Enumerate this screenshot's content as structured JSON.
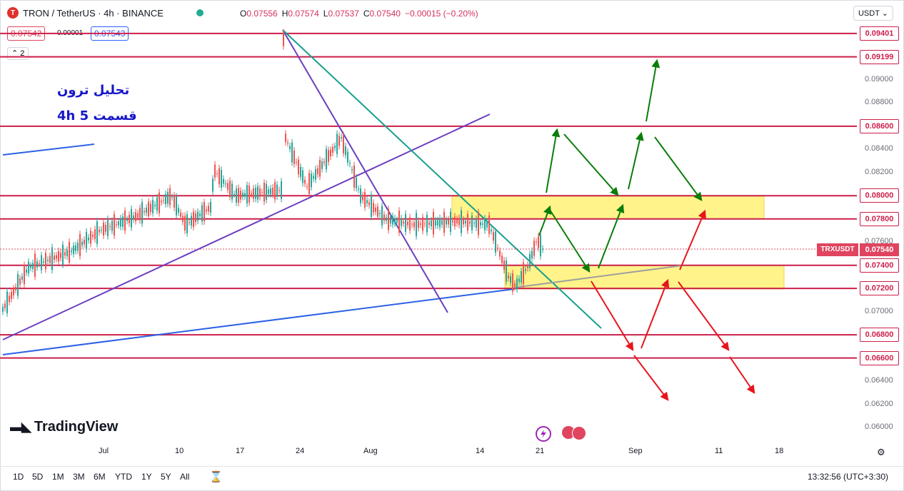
{
  "header": {
    "symbol": "TRON / TetherUS · 4h · BINANCE",
    "ohlc": {
      "o_label": "O",
      "o": "0.07556",
      "h_label": "H",
      "h": "0.07574",
      "l_label": "L",
      "l": "0.07537",
      "c_label": "C",
      "c": "0.07540",
      "chg": "−0.00015 (−0.20%)"
    },
    "sell_price": "0.07542",
    "spread": "0.00001",
    "buy_price": "0.07543",
    "indicator_count": "2",
    "currency": "USDT"
  },
  "annotation": {
    "line1": "تحلیل ترون",
    "line2": "قسمت 5   4h"
  },
  "price_axis": {
    "ticks": [
      "0.09000",
      "0.08800",
      "0.08400",
      "0.08200",
      "0.07600",
      "0.07000",
      "0.06400",
      "0.06200",
      "0.06000"
    ],
    "levels": [
      "0.09401",
      "0.09199",
      "0.08600",
      "0.08000",
      "0.07800",
      "0.07400",
      "0.07200",
      "0.06800",
      "0.06600"
    ],
    "current": "0.07540",
    "symbol_tag": "TRXUSDT"
  },
  "time_axis": [
    "Jul",
    "10",
    "17",
    "24",
    "Aug",
    "14",
    "21",
    "Sep",
    "11",
    "18"
  ],
  "branding": "TradingView",
  "bottom_bar": {
    "timeframes": [
      "1D",
      "5D",
      "1M",
      "3M",
      "6M",
      "YTD",
      "1Y",
      "5Y",
      "All"
    ],
    "clock": "13:32:56 (UTC+3:30)"
  },
  "colors": {
    "level_line": "#cc1f49",
    "support_zone": "#fff176",
    "up_arrow": "#0a7d0a",
    "down_arrow": "#e8141b",
    "trend_blue": "#2c62e6",
    "trend_purple": "#6b3fc0",
    "trend_teal": "#17a08c"
  }
}
